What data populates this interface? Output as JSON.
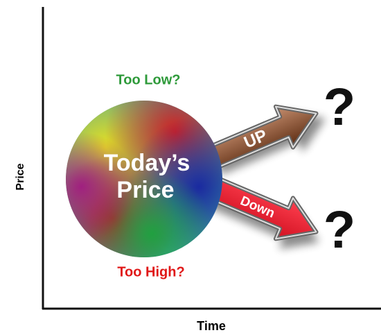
{
  "axes": {
    "y_label": "Price",
    "x_label": "Time"
  },
  "circle": {
    "lines": [
      "Today’s",
      "Price"
    ]
  },
  "labels": {
    "top": "Too Low?",
    "bottom": "Too High?"
  },
  "arrows": [
    {
      "label": "UP",
      "outcome": "?"
    },
    {
      "label": "Down",
      "outcome": "?"
    }
  ]
}
